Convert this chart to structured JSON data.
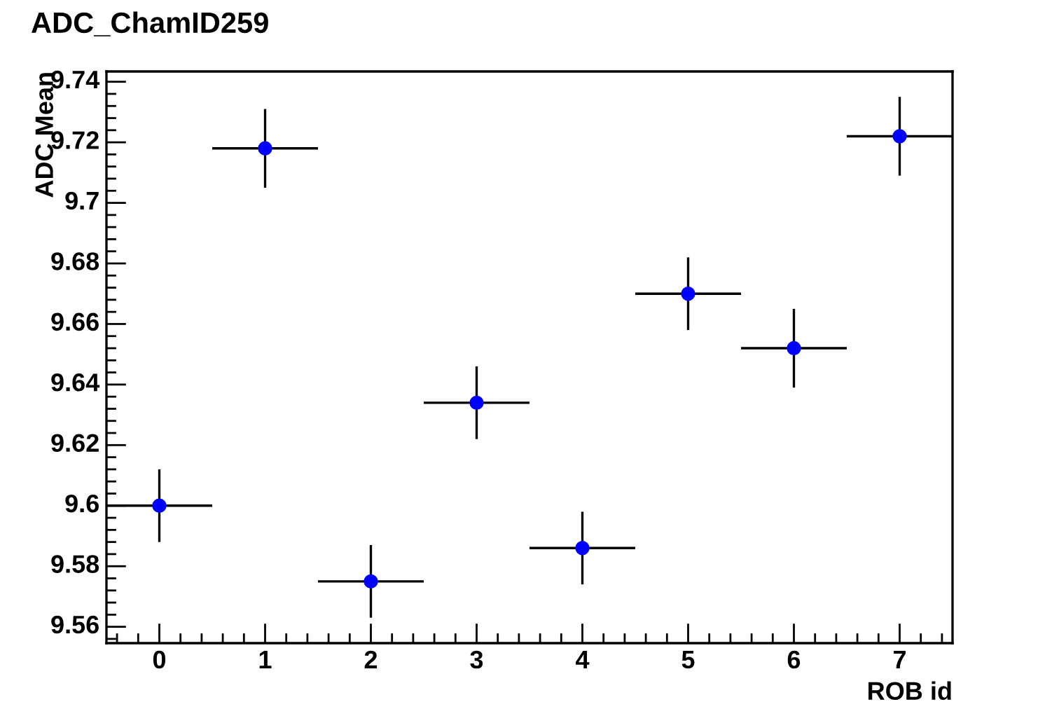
{
  "chart_data": {
    "type": "scatter",
    "title": "ADC_ChamID259",
    "xlabel": "ROB id",
    "ylabel": "ADC Mean",
    "x": [
      0,
      1,
      2,
      3,
      4,
      5,
      6,
      7
    ],
    "series": [
      {
        "color": "#0000ff",
        "values": [
          9.6,
          9.718,
          9.575,
          9.634,
          9.586,
          9.67,
          9.652,
          9.722
        ],
        "errors": [
          0.012,
          0.013,
          0.012,
          0.012,
          0.012,
          0.012,
          0.013,
          0.013
        ],
        "xerrors": [
          0.5,
          0.5,
          0.5,
          0.5,
          0.5,
          0.5,
          0.5,
          0.5
        ]
      }
    ],
    "xlim": [
      -0.5,
      7.5
    ],
    "xticks": [
      0,
      1,
      2,
      3,
      4,
      5,
      6,
      7
    ],
    "ylim": [
      9.5546,
      9.7434
    ],
    "yticks": [
      9.56,
      9.58,
      9.6,
      9.62,
      9.64,
      9.66,
      9.68,
      9.7,
      9.72,
      9.74
    ],
    "marker": "circle",
    "grid": false,
    "legend": false
  }
}
